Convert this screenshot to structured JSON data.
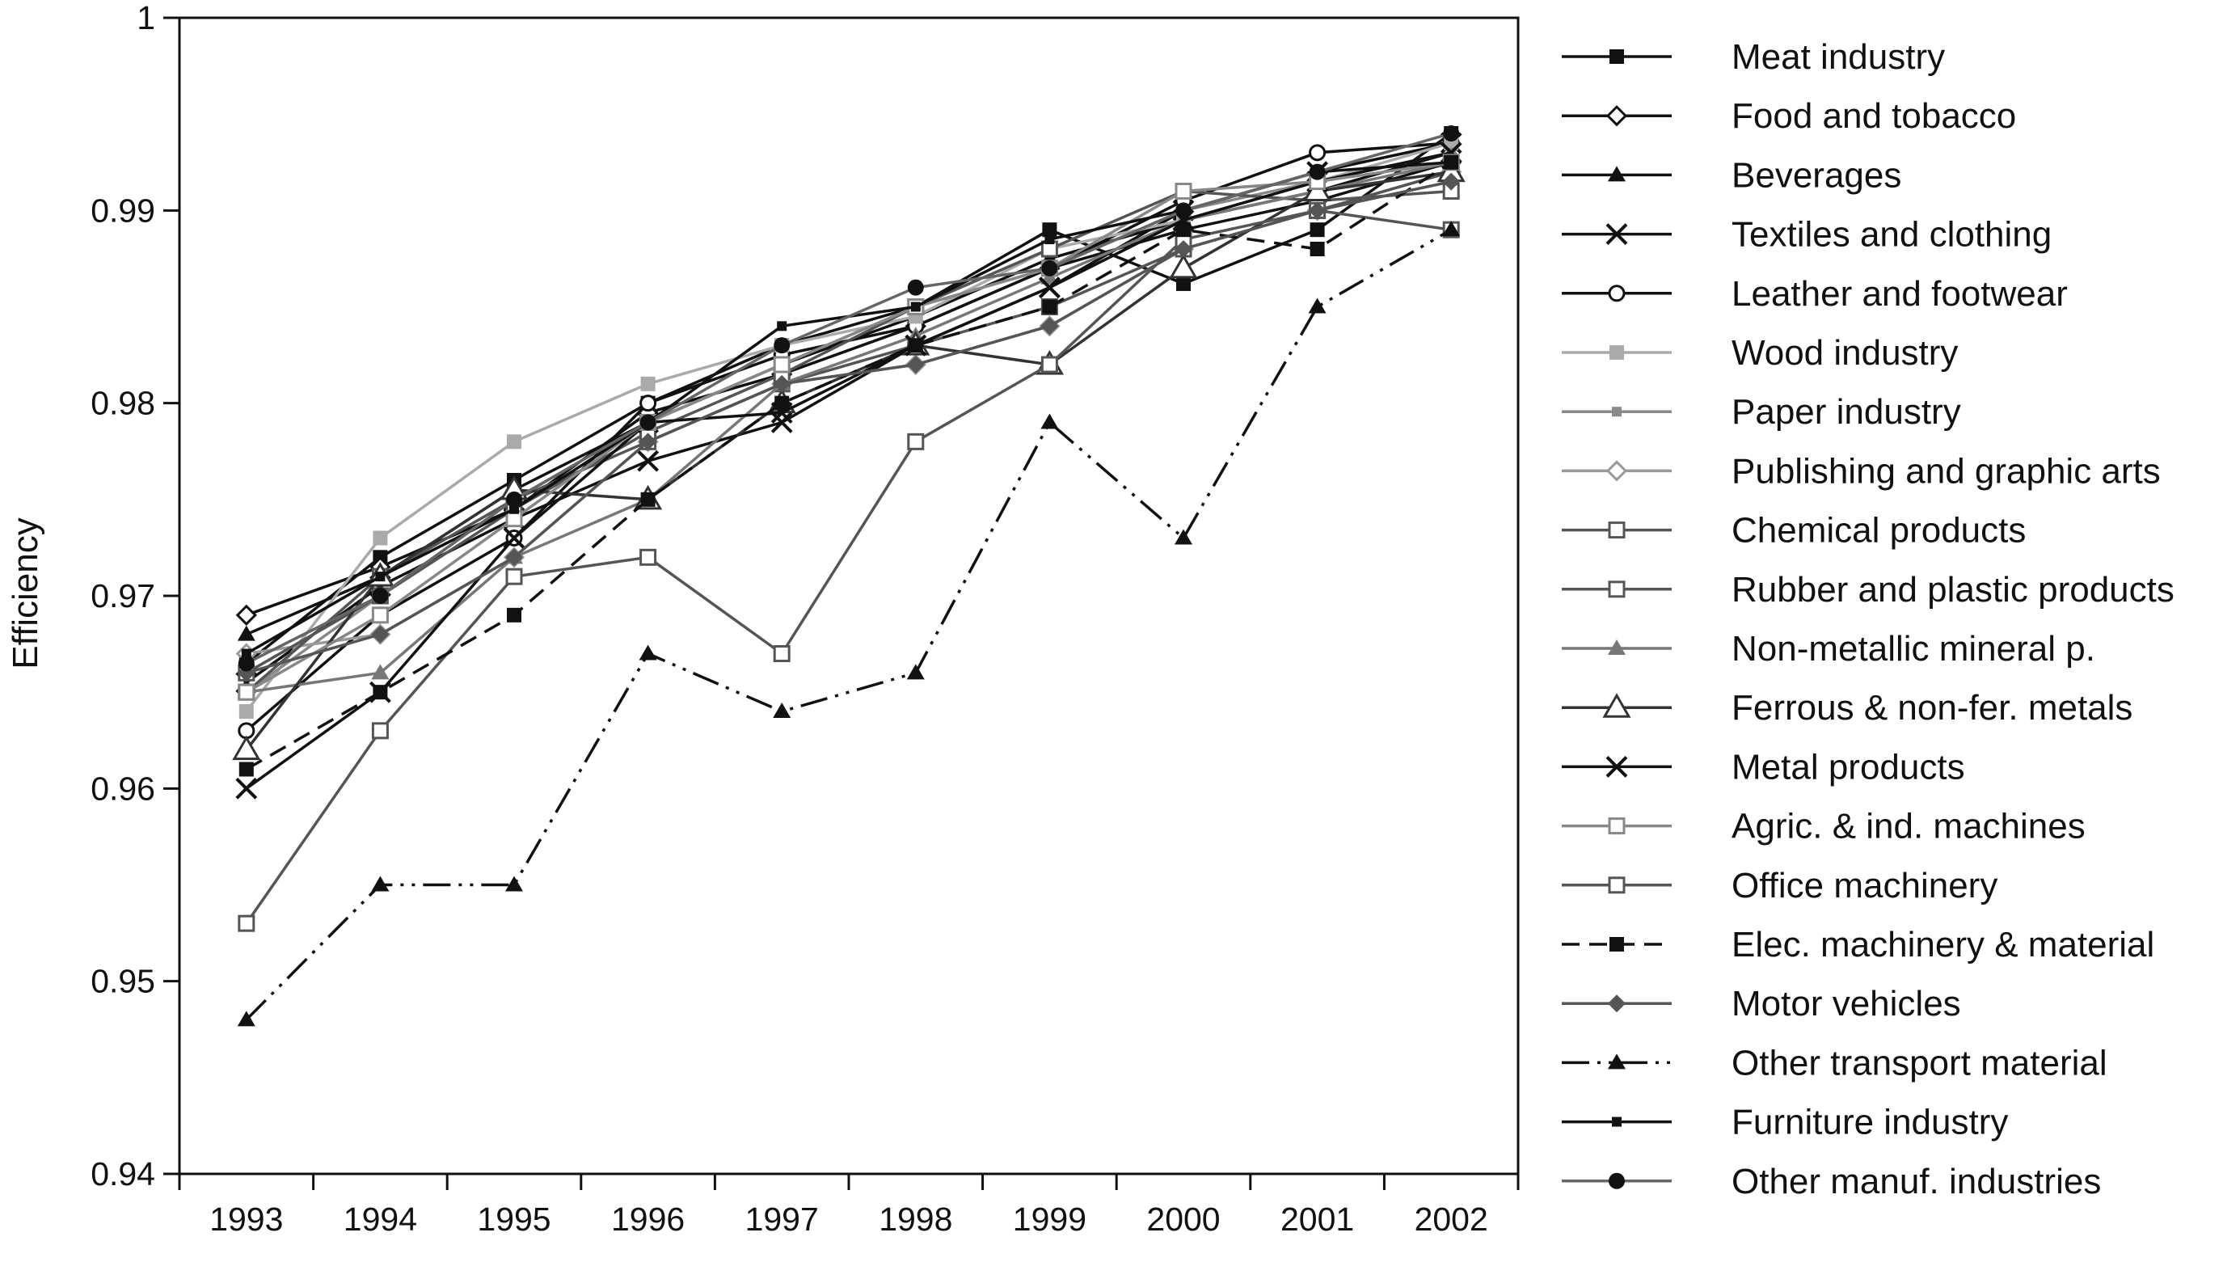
{
  "chart_data": {
    "type": "line",
    "title": "",
    "xlabel": "",
    "ylabel": "Efficiency",
    "ylim": [
      0.94,
      1.0
    ],
    "yticks": [
      "0.94",
      "0.95",
      "0.96",
      "0.97",
      "0.98",
      "0.99",
      "1"
    ],
    "grid": false,
    "legend_position": "right",
    "categories": [
      "1993",
      "1994",
      "1995",
      "1996",
      "1997",
      "1998",
      "1999",
      "2000",
      "2001",
      "2002"
    ],
    "series": [
      {
        "name": "Meat industry",
        "color": "#111111",
        "dash": "solid",
        "marker": "square-filled",
        "values": [
          0.9665,
          0.972,
          0.976,
          0.98,
          0.983,
          0.985,
          0.989,
          0.9862,
          0.989,
          0.994
        ]
      },
      {
        "name": "Food and tobacco",
        "color": "#111111",
        "dash": "solid",
        "marker": "diamond-open",
        "values": [
          0.969,
          0.9715,
          0.9745,
          0.9795,
          0.9815,
          0.984,
          0.987,
          0.989,
          0.9905,
          0.9925
        ]
      },
      {
        "name": "Beverages",
        "color": "#111111",
        "dash": "solid",
        "marker": "triangle-filled",
        "values": [
          0.968,
          0.971,
          0.9755,
          0.979,
          0.982,
          0.9845,
          0.9875,
          0.9895,
          0.991,
          0.993
        ]
      },
      {
        "name": "Textiles and clothing",
        "color": "#111111",
        "dash": "solid",
        "marker": "x",
        "values": [
          0.9655,
          0.9705,
          0.974,
          0.977,
          0.979,
          0.983,
          0.986,
          0.99,
          0.992,
          0.9935
        ]
      },
      {
        "name": "Leather and footwear",
        "color": "#111111",
        "dash": "solid",
        "marker": "circle-open",
        "values": [
          0.963,
          0.969,
          0.973,
          0.98,
          0.9825,
          0.984,
          0.987,
          0.9905,
          0.993,
          0.9935
        ]
      },
      {
        "name": "Wood industry",
        "color": "#aaaaaa",
        "dash": "solid",
        "marker": "square-filled",
        "values": [
          0.964,
          0.973,
          0.978,
          0.981,
          0.983,
          0.9845,
          0.988,
          0.9895,
          0.9915,
          0.9935
        ]
      },
      {
        "name": "Paper industry",
        "color": "#888888",
        "dash": "solid",
        "marker": "small-square",
        "values": [
          0.965,
          0.97,
          0.975,
          0.979,
          0.982,
          0.985,
          0.987,
          0.99,
          0.9915,
          0.993
        ]
      },
      {
        "name": "Publishing and graphic arts",
        "color": "#999999",
        "dash": "solid",
        "marker": "diamond-open",
        "values": [
          0.967,
          0.968,
          0.972,
          0.978,
          0.981,
          0.982,
          0.984,
          0.988,
          0.99,
          0.992
        ]
      },
      {
        "name": "Chemical products",
        "color": "#555555",
        "dash": "solid",
        "marker": "square-open",
        "values": [
          0.965,
          0.971,
          0.975,
          0.978,
          0.981,
          0.983,
          0.985,
          0.988,
          0.99,
          0.992
        ]
      },
      {
        "name": "Rubber and plastic products",
        "color": "#555555",
        "dash": "solid",
        "marker": "square-open",
        "values": [
          0.966,
          0.97,
          0.9745,
          0.9785,
          0.9815,
          0.985,
          0.988,
          0.991,
          0.9905,
          0.991
        ]
      },
      {
        "name": "Non-metallic mineral p.",
        "color": "#777777",
        "dash": "solid",
        "marker": "triangle-filled",
        "values": [
          0.965,
          0.966,
          0.972,
          0.975,
          0.981,
          0.9835,
          0.9865,
          0.9895,
          0.991,
          0.9925
        ]
      },
      {
        "name": "Ferrous & non-fer. metals",
        "color": "#333333",
        "dash": "solid",
        "marker": "triangle-open",
        "values": [
          0.962,
          0.971,
          0.9755,
          0.975,
          0.98,
          0.983,
          0.982,
          0.987,
          0.991,
          0.992
        ]
      },
      {
        "name": "Metal products",
        "color": "#111111",
        "dash": "solid",
        "marker": "x",
        "values": [
          0.96,
          0.965,
          0.973,
          0.979,
          0.9795,
          0.983,
          0.986,
          0.9895,
          0.9915,
          0.993
        ]
      },
      {
        "name": "Agric. & ind. machines",
        "color": "#888888",
        "dash": "solid",
        "marker": "square-open",
        "values": [
          0.965,
          0.969,
          0.974,
          0.979,
          0.982,
          0.985,
          0.987,
          0.991,
          0.9915,
          0.9925
        ]
      },
      {
        "name": "Office machinery",
        "color": "#555555",
        "dash": "solid",
        "marker": "square-open",
        "values": [
          0.953,
          0.963,
          0.971,
          0.972,
          0.967,
          0.978,
          0.982,
          0.9885,
          0.99,
          0.989
        ]
      },
      {
        "name": "Elec. machinery & material",
        "color": "#111111",
        "dash": "dashed",
        "marker": "square-filled",
        "values": [
          0.961,
          0.965,
          0.969,
          0.975,
          0.98,
          0.983,
          0.985,
          0.989,
          0.988,
          0.9925
        ]
      },
      {
        "name": "Motor vehicles",
        "color": "#555555",
        "dash": "solid",
        "marker": "diamond-filled",
        "values": [
          0.966,
          0.968,
          0.972,
          0.978,
          0.981,
          0.982,
          0.984,
          0.988,
          0.99,
          0.9915
        ]
      },
      {
        "name": "Other transport material",
        "color": "#111111",
        "dash": "dashdotdot",
        "marker": "triangle-filled",
        "values": [
          0.948,
          0.955,
          0.955,
          0.967,
          0.964,
          0.966,
          0.979,
          0.973,
          0.985,
          0.989
        ]
      },
      {
        "name": "Furniture industry",
        "color": "#111111",
        "dash": "solid",
        "marker": "small-square",
        "values": [
          0.967,
          0.971,
          0.9745,
          0.979,
          0.984,
          0.985,
          0.9885,
          0.99,
          0.992,
          0.9925
        ]
      },
      {
        "name": "Other manuf. industries",
        "color": "#666666",
        "dash": "solid",
        "marker": "circle-filled",
        "values": [
          0.9665,
          0.97,
          0.975,
          0.979,
          0.983,
          0.986,
          0.987,
          0.99,
          0.992,
          0.994
        ]
      }
    ]
  }
}
